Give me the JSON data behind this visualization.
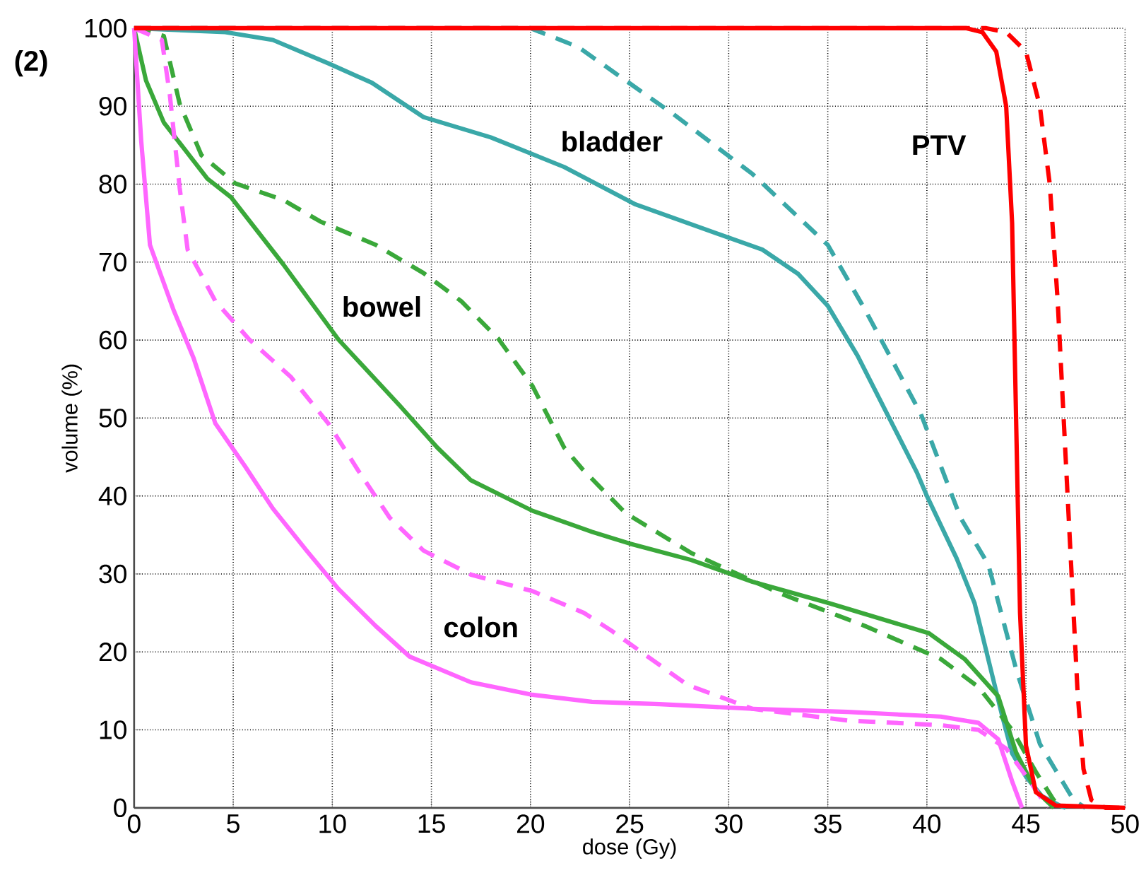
{
  "chart_data": {
    "type": "line",
    "xlabel": "dose (Gy)",
    "ylabel": "volume (%)",
    "xlim": [
      0,
      50
    ],
    "ylim": [
      0,
      100
    ],
    "xticks": [
      0,
      5,
      10,
      15,
      20,
      25,
      30,
      35,
      40,
      45,
      50
    ],
    "yticks": [
      0,
      10,
      20,
      30,
      40,
      50,
      60,
      70,
      80,
      90,
      100
    ],
    "grid": true,
    "marker": "none",
    "annotations": [
      "(2)",
      "bladder",
      "PTV",
      "bowel",
      "colon"
    ],
    "series": [
      {
        "color": "#3aa8a8",
        "line_style": "dashed",
        "x": [
          0,
          20,
          22.4,
          27.2,
          31.2,
          35,
          36.9,
          39.7,
          41.7,
          43.1,
          44.5,
          45.7,
          47.4,
          48
        ],
        "values": [
          100,
          100,
          97.6,
          89,
          81.3,
          72.2,
          63.8,
          50.5,
          37.2,
          31.2,
          17.8,
          8.2,
          1,
          0
        ]
      },
      {
        "color": "#3aa8a8",
        "line_style": "solid",
        "x": [
          0,
          4.6,
          7,
          9.8,
          12,
          14.6,
          18,
          21.7,
          25.3,
          28.5,
          31.7,
          33.5,
          35,
          36.5,
          38.3,
          39.5,
          40,
          41.5,
          42.4,
          43.2,
          43.8,
          44.3,
          45,
          45.8,
          46.7,
          47
        ],
        "values": [
          100,
          99.5,
          98.5,
          95.5,
          93,
          88.6,
          86,
          82.2,
          77.4,
          74.5,
          71.6,
          68.5,
          64.4,
          58,
          49,
          43,
          40,
          32,
          26.3,
          18,
          11.8,
          7,
          4,
          1.5,
          0.3,
          0
        ]
      },
      {
        "color": "#3aa83a",
        "line_style": "dashed",
        "x": [
          0,
          1.5,
          2.3,
          3.4,
          5.1,
          7.5,
          9.4,
          12.2,
          14.6,
          16.5,
          18.4,
          20.1,
          21.7,
          22.6,
          24.8,
          28.1,
          32.6,
          36.9,
          40.7,
          42.6,
          44.3,
          45.5,
          46.4,
          46.8
        ],
        "values": [
          100,
          99,
          90.3,
          83.7,
          80.1,
          78,
          75.2,
          72.2,
          68.6,
          65,
          60.1,
          54.1,
          46.2,
          43.5,
          37.8,
          32.7,
          27.5,
          23.3,
          19.1,
          15.5,
          10,
          4.6,
          1,
          0
        ]
      },
      {
        "color": "#3aa83a",
        "line_style": "solid",
        "x": [
          0,
          0.6,
          1.5,
          3.7,
          4.9,
          7.5,
          10.3,
          13.4,
          15.3,
          17,
          20.1,
          23.1,
          25,
          28.1,
          31.2,
          35,
          40.1,
          41.9,
          43.6,
          44.5,
          45.5,
          46.4
        ],
        "values": [
          100,
          93.3,
          87.9,
          80.7,
          78.3,
          69.8,
          60.1,
          51.6,
          46.2,
          42,
          38.1,
          35.4,
          33.9,
          31.8,
          29,
          26.3,
          22.4,
          19.1,
          14.3,
          7.1,
          2.2,
          0
        ]
      },
      {
        "color": "#ff66ff",
        "line_style": "dashed",
        "x": [
          0,
          1.4,
          1.8,
          2.3,
          2.7,
          4.1,
          5.8,
          7.9,
          9.8,
          11.3,
          12.9,
          14.6,
          17,
          20.1,
          22.7,
          24.1,
          27.9,
          31.2,
          36,
          40.7,
          42.6,
          44,
          45.2,
          46.1
        ],
        "values": [
          100,
          98.5,
          91.5,
          79.5,
          71.6,
          65,
          60.1,
          55.3,
          49.3,
          43.3,
          37.2,
          33,
          29.9,
          27.8,
          25,
          22.7,
          15.8,
          12.7,
          11.2,
          10.6,
          10,
          7.6,
          3.4,
          0
        ]
      },
      {
        "color": "#ff66ff",
        "line_style": "solid",
        "x": [
          0,
          0.36,
          0.8,
          2,
          3,
          4.1,
          5.6,
          7,
          8.7,
          10.3,
          12.2,
          13.9,
          17,
          20.1,
          23.1,
          26.5,
          31.2,
          36,
          40.7,
          42.6,
          43.6,
          44.3,
          44.8
        ],
        "values": [
          100,
          85.5,
          72.2,
          63.8,
          57.7,
          49.3,
          43.8,
          38.4,
          33,
          28.1,
          23.3,
          19.4,
          16.1,
          14.5,
          13.6,
          13.3,
          12.7,
          12.3,
          11.7,
          10.9,
          8.8,
          3.4,
          0
        ]
      },
      {
        "color": "#ff0000",
        "line_style": "dashed",
        "x": [
          0,
          43,
          44,
          45,
          45.7,
          46.2,
          46.6,
          47,
          47.3,
          47.6,
          47.9,
          48.3,
          49,
          50
        ],
        "values": [
          100,
          100,
          99.5,
          97,
          90,
          80,
          65,
          45,
          30,
          15,
          5,
          1,
          0,
          0
        ]
      },
      {
        "color": "#ff0000",
        "line_style": "solid",
        "x": [
          0,
          42,
          42.8,
          43.5,
          44,
          44.3,
          44.5,
          44.7,
          45,
          45.5,
          46.5,
          50
        ],
        "values": [
          100,
          100,
          99.5,
          97,
          90,
          75,
          50,
          25,
          8,
          2,
          0.3,
          0
        ]
      }
    ]
  }
}
